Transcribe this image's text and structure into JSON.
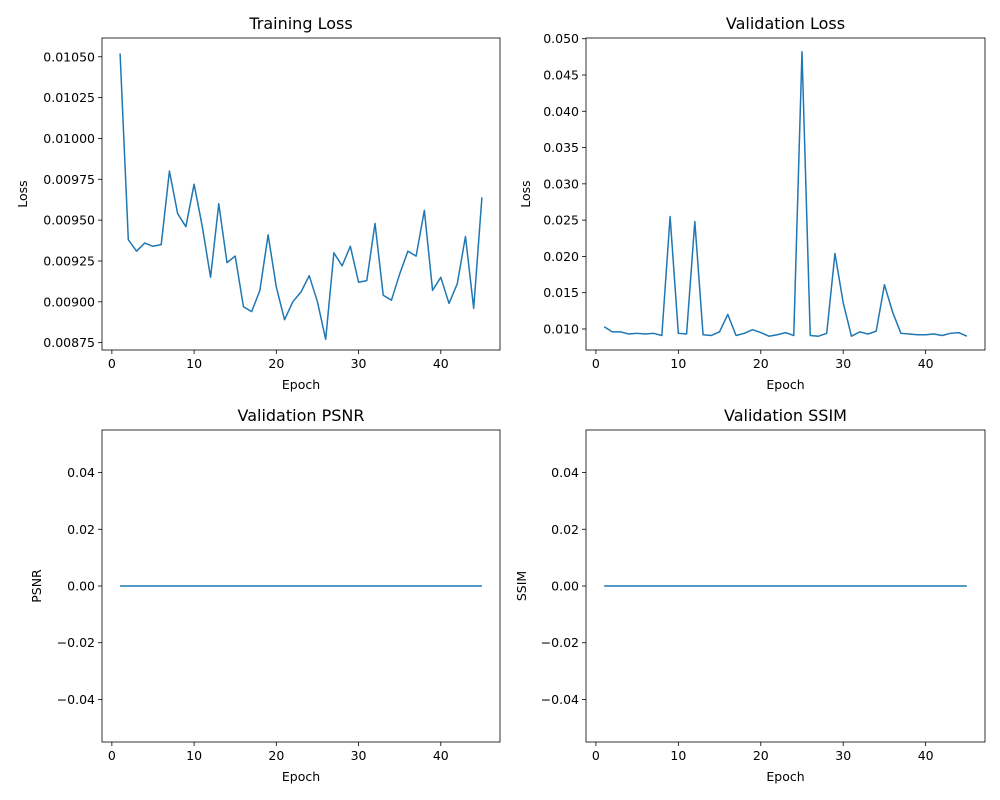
{
  "chart_data": [
    {
      "type": "line",
      "title": "Training Loss",
      "xlabel": "Epoch",
      "ylabel": "Loss",
      "xlim": [
        -1.2,
        47.2
      ],
      "ylim": [
        0.008705,
        0.010615
      ],
      "xticks": [
        0,
        10,
        20,
        30,
        40
      ],
      "yticks": [
        0.00875,
        0.009,
        0.00925,
        0.0095,
        0.00975,
        0.01,
        0.01025,
        0.0105
      ],
      "ytick_labels": [
        "0.00875",
        "0.00900",
        "0.00925",
        "0.00950",
        "0.00975",
        "0.01000",
        "0.01025",
        "0.01050"
      ],
      "grid": false,
      "color": "#1f77b4",
      "x": [
        1,
        2,
        3,
        4,
        5,
        6,
        7,
        8,
        9,
        10,
        11,
        12,
        13,
        14,
        15,
        16,
        17,
        18,
        19,
        20,
        21,
        22,
        23,
        24,
        25,
        26,
        27,
        28,
        29,
        30,
        31,
        32,
        33,
        34,
        35,
        36,
        37,
        38,
        39,
        40,
        41,
        42,
        43,
        44,
        45
      ],
      "values": [
        0.01052,
        0.00938,
        0.00931,
        0.00936,
        0.00934,
        0.00935,
        0.0098,
        0.00954,
        0.00946,
        0.00972,
        0.00946,
        0.00915,
        0.0096,
        0.00924,
        0.00928,
        0.00897,
        0.00894,
        0.00907,
        0.00941,
        0.00909,
        0.00889,
        0.009,
        0.00906,
        0.00916,
        0.009,
        0.00877,
        0.0093,
        0.00922,
        0.00934,
        0.00912,
        0.00913,
        0.00948,
        0.00904,
        0.00901,
        0.00917,
        0.00931,
        0.00928,
        0.00956,
        0.00907,
        0.00915,
        0.00899,
        0.00911,
        0.0094,
        0.00896,
        0.00964
      ]
    },
    {
      "type": "line",
      "title": "Validation Loss",
      "xlabel": "Epoch",
      "ylabel": "Loss",
      "xlim": [
        -1.2,
        47.2
      ],
      "ylim": [
        0.0071,
        0.0501
      ],
      "xticks": [
        0,
        10,
        20,
        30,
        40
      ],
      "yticks": [
        0.01,
        0.015,
        0.02,
        0.025,
        0.03,
        0.035,
        0.04,
        0.045,
        0.05
      ],
      "ytick_labels": [
        "0.010",
        "0.015",
        "0.020",
        "0.025",
        "0.030",
        "0.035",
        "0.040",
        "0.045",
        "0.050"
      ],
      "grid": false,
      "color": "#1f77b4",
      "x": [
        1,
        2,
        3,
        4,
        5,
        6,
        7,
        8,
        9,
        10,
        11,
        12,
        13,
        14,
        15,
        16,
        17,
        18,
        19,
        20,
        21,
        22,
        23,
        24,
        25,
        26,
        27,
        28,
        29,
        30,
        31,
        32,
        33,
        34,
        35,
        36,
        37,
        38,
        39,
        40,
        41,
        42,
        43,
        44,
        45
      ],
      "values": [
        0.0103,
        0.0096,
        0.0096,
        0.0093,
        0.0094,
        0.0093,
        0.0094,
        0.0091,
        0.0255,
        0.0094,
        0.0093,
        0.0248,
        0.0092,
        0.0091,
        0.0096,
        0.012,
        0.0091,
        0.0094,
        0.0099,
        0.0095,
        0.009,
        0.0092,
        0.0095,
        0.0091,
        0.0482,
        0.0091,
        0.009,
        0.0094,
        0.0204,
        0.0136,
        0.009,
        0.0096,
        0.0093,
        0.0097,
        0.0161,
        0.0123,
        0.0094,
        0.0093,
        0.0092,
        0.0092,
        0.0093,
        0.0091,
        0.0094,
        0.0095,
        0.009
      ]
    },
    {
      "type": "line",
      "title": "Validation PSNR",
      "xlabel": "Epoch",
      "ylabel": "PSNR",
      "xlim": [
        -1.2,
        47.2
      ],
      "ylim": [
        -0.055,
        0.055
      ],
      "xticks": [
        0,
        10,
        20,
        30,
        40
      ],
      "yticks": [
        -0.04,
        -0.02,
        0.0,
        0.02,
        0.04
      ],
      "ytick_labels": [
        "−0.04",
        "−0.02",
        "0.00",
        "0.02",
        "0.04"
      ],
      "grid": false,
      "color": "#1f77b4",
      "x": [
        1,
        45
      ],
      "values": [
        0,
        0
      ]
    },
    {
      "type": "line",
      "title": "Validation SSIM",
      "xlabel": "Epoch",
      "ylabel": "SSIM",
      "xlim": [
        -1.2,
        47.2
      ],
      "ylim": [
        -0.055,
        0.055
      ],
      "xticks": [
        0,
        10,
        20,
        30,
        40
      ],
      "yticks": [
        -0.04,
        -0.02,
        0.0,
        0.02,
        0.04
      ],
      "ytick_labels": [
        "−0.04",
        "−0.02",
        "0.00",
        "0.02",
        "0.04"
      ],
      "grid": false,
      "color": "#1f77b4",
      "x": [
        1,
        45
      ],
      "values": [
        0,
        0
      ]
    }
  ]
}
